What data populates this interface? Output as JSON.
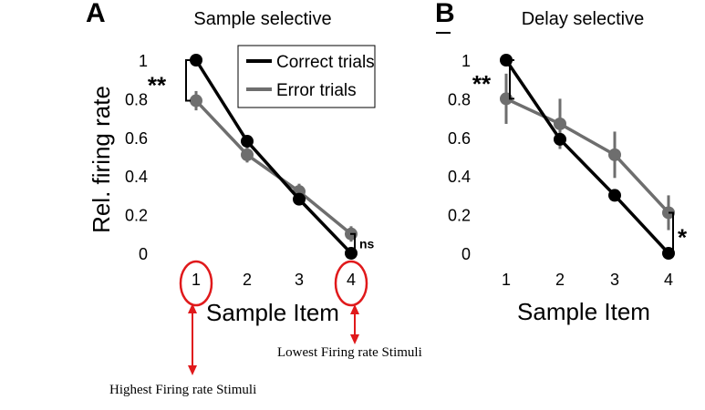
{
  "chart_data": [
    {
      "type": "line",
      "panel_label": "A",
      "title": "Sample selective",
      "xlabel": "Sample Item",
      "ylabel": "Rel. firing rate",
      "categories": [
        "1",
        "2",
        "3",
        "4"
      ],
      "x_ticks": [
        "1",
        "2",
        "3",
        "4"
      ],
      "y_ticks": [
        "0",
        "0.2",
        "0.4",
        "0.6",
        "0.8",
        "1"
      ],
      "ylim": [
        0,
        1
      ],
      "legend": {
        "placement": "top-right",
        "entries": [
          "Correct trials",
          "Error trials"
        ]
      },
      "series": [
        {
          "name": "Correct trials",
          "color": "#000000",
          "values": [
            1.0,
            0.58,
            0.28,
            0.0
          ],
          "errors": [
            0,
            0,
            0,
            0
          ]
        },
        {
          "name": "Error trials",
          "color": "#6e6e6e",
          "values": [
            0.79,
            0.51,
            0.32,
            0.1
          ],
          "errors": [
            0.05,
            0.04,
            0.04,
            0.04
          ]
        }
      ],
      "significance": [
        {
          "category": "1",
          "text": "**"
        },
        {
          "category": "4",
          "text": "ns"
        }
      ]
    },
    {
      "type": "line",
      "panel_label": "B",
      "title": "Delay selective",
      "xlabel": "Sample Item",
      "ylabel": "",
      "categories": [
        "1",
        "2",
        "3",
        "4"
      ],
      "x_ticks": [
        "1",
        "2",
        "3",
        "4"
      ],
      "y_ticks": [
        "0",
        "0.2",
        "0.4",
        "0.6",
        "0.8",
        "1"
      ],
      "ylim": [
        0,
        1
      ],
      "series": [
        {
          "name": "Correct trials",
          "color": "#000000",
          "values": [
            1.0,
            0.59,
            0.3,
            0.0
          ],
          "errors": [
            0,
            0,
            0,
            0
          ]
        },
        {
          "name": "Error trials",
          "color": "#6e6e6e",
          "values": [
            0.8,
            0.67,
            0.51,
            0.21
          ],
          "errors": [
            0.13,
            0.13,
            0.12,
            0.09
          ]
        }
      ],
      "significance": [
        {
          "category": "1",
          "text": "**"
        },
        {
          "category": "4",
          "text": "*"
        }
      ]
    }
  ],
  "annotations": {
    "highest": "Highest Firing rate Stimuli",
    "lowest": "Lowest Firing rate Stimuli",
    "circle_color": "#e0191b"
  }
}
